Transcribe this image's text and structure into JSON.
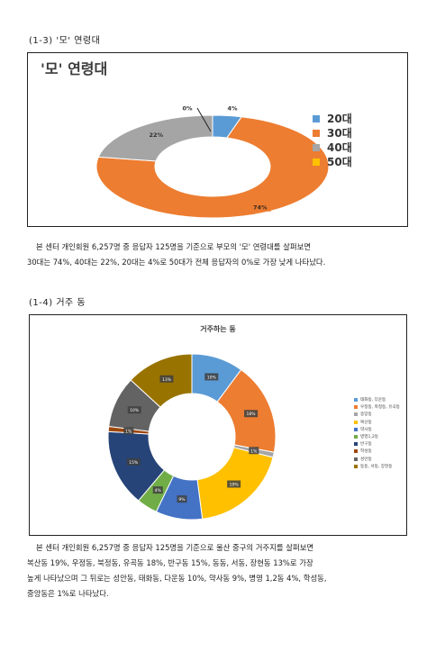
{
  "section1": {
    "heading": "(1-3) '모' 연령대",
    "chart_title": "'모' 연령대",
    "paragraph_line1": "본 센터 개인회원 6,257명 중 응답자 125명을 기준으로 부모의 '모' 연령대를 살펴보면",
    "paragraph_line2": "30대는 74%, 40대는 22%, 20대는 4%로 50대가 전체 응답자의 0%로 가장 낮게 나타났다."
  },
  "section2": {
    "heading": "(1-4) 거주 동",
    "chart_title": "거주하는 동",
    "paragraph_line1": "본 센터 개인회원 6,257명 중 응답자 125명을 기준으로 울산 중구의 거주지를 살펴보면",
    "paragraph_line2": "복산동 19%, 우정동, 북정동, 유곡동 18%, 반구동 15%, 동동, 서동, 장현동 13%로 가장",
    "paragraph_line3": "높게 나타났으며 그 뒤로는 성안동, 태화동, 다운동 10%, 약사동 9%, 병영 1,2동 4%, 학성동,",
    "paragraph_line4": "중앙동은 1%로 나타났다."
  },
  "chart_data": [
    {
      "type": "pie",
      "title": "'모' 연령대",
      "categories": [
        "20대",
        "30대",
        "40대",
        "50대"
      ],
      "values": [
        4,
        74,
        22,
        0
      ],
      "labels": [
        "4%",
        "74%",
        "22%",
        "0%"
      ],
      "colors": [
        "#5b9bd5",
        "#ed7d31",
        "#a5a5a5",
        "#ffc000"
      ],
      "legend": "right"
    },
    {
      "type": "pie",
      "title": "거주하는 동",
      "categories": [
        "태화동, 다운동",
        "우정동, 북정동, 유곡동",
        "중앙동",
        "복산동",
        "약사동",
        "병영1,2동",
        "반구동",
        "학성동",
        "성안동",
        "동동, 서동, 장현동"
      ],
      "values": [
        10,
        18,
        1,
        19,
        9,
        4,
        15,
        1,
        10,
        13
      ],
      "labels": [
        "10%",
        "18%",
        "1%",
        "19%",
        "9%",
        "4%",
        "15%",
        "1%",
        "10%",
        "13%"
      ],
      "colors": [
        "#5b9bd5",
        "#ed7d31",
        "#a5a5a5",
        "#ffc000",
        "#4472c4",
        "#70ad47",
        "#264478",
        "#9e480e",
        "#636363",
        "#997300"
      ],
      "legend": "right"
    }
  ]
}
